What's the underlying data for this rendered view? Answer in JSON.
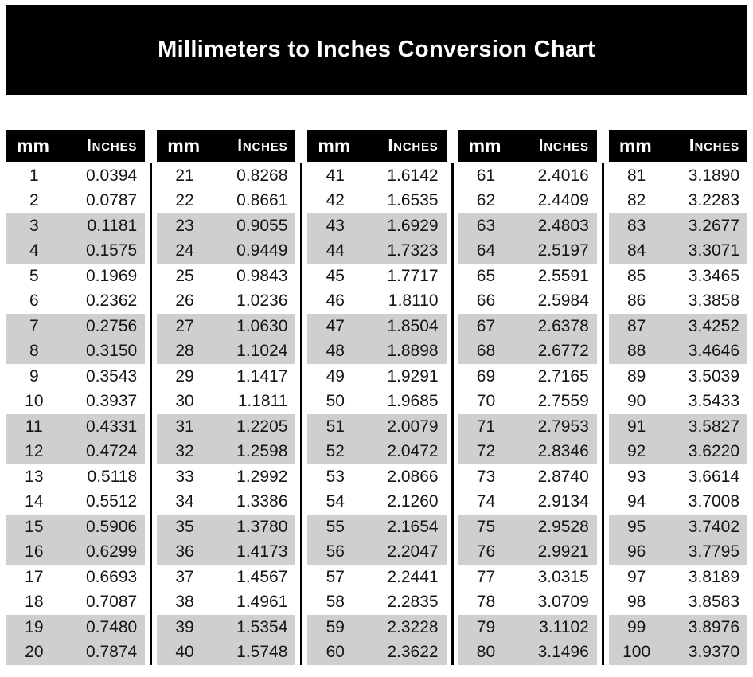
{
  "title": "Millimeters to Inches Conversion Chart",
  "colors": {
    "banner_bg": "#000000",
    "header_bg": "#000000",
    "header_text": "#ffffff",
    "stripe": "#cfcfcf",
    "text": "#151515",
    "divider": "#000000",
    "page_bg": "#ffffff"
  },
  "header": {
    "mm": "mm",
    "inches": "Inches"
  },
  "tables": [
    {
      "rows": [
        [
          "1",
          "0.0394"
        ],
        [
          "2",
          "0.0787"
        ],
        [
          "3",
          "0.1181"
        ],
        [
          "4",
          "0.1575"
        ],
        [
          "5",
          "0.1969"
        ],
        [
          "6",
          "0.2362"
        ],
        [
          "7",
          "0.2756"
        ],
        [
          "8",
          "0.3150"
        ],
        [
          "9",
          "0.3543"
        ],
        [
          "10",
          "0.3937"
        ],
        [
          "11",
          "0.4331"
        ],
        [
          "12",
          "0.4724"
        ],
        [
          "13",
          "0.5118"
        ],
        [
          "14",
          "0.5512"
        ],
        [
          "15",
          "0.5906"
        ],
        [
          "16",
          "0.6299"
        ],
        [
          "17",
          "0.6693"
        ],
        [
          "18",
          "0.7087"
        ],
        [
          "19",
          "0.7480"
        ],
        [
          "20",
          "0.7874"
        ]
      ]
    },
    {
      "rows": [
        [
          "21",
          "0.8268"
        ],
        [
          "22",
          "0.8661"
        ],
        [
          "23",
          "0.9055"
        ],
        [
          "24",
          "0.9449"
        ],
        [
          "25",
          "0.9843"
        ],
        [
          "26",
          "1.0236"
        ],
        [
          "27",
          "1.0630"
        ],
        [
          "28",
          "1.1024"
        ],
        [
          "29",
          "1.1417"
        ],
        [
          "30",
          "1.1811"
        ],
        [
          "31",
          "1.2205"
        ],
        [
          "32",
          "1.2598"
        ],
        [
          "33",
          "1.2992"
        ],
        [
          "34",
          "1.3386"
        ],
        [
          "35",
          "1.3780"
        ],
        [
          "36",
          "1.4173"
        ],
        [
          "37",
          "1.4567"
        ],
        [
          "38",
          "1.4961"
        ],
        [
          "39",
          "1.5354"
        ],
        [
          "40",
          "1.5748"
        ]
      ]
    },
    {
      "rows": [
        [
          "41",
          "1.6142"
        ],
        [
          "42",
          "1.6535"
        ],
        [
          "43",
          "1.6929"
        ],
        [
          "44",
          "1.7323"
        ],
        [
          "45",
          "1.7717"
        ],
        [
          "46",
          "1.8110"
        ],
        [
          "47",
          "1.8504"
        ],
        [
          "48",
          "1.8898"
        ],
        [
          "49",
          "1.9291"
        ],
        [
          "50",
          "1.9685"
        ],
        [
          "51",
          "2.0079"
        ],
        [
          "52",
          "2.0472"
        ],
        [
          "53",
          "2.0866"
        ],
        [
          "54",
          "2.1260"
        ],
        [
          "55",
          "2.1654"
        ],
        [
          "56",
          "2.2047"
        ],
        [
          "57",
          "2.2441"
        ],
        [
          "58",
          "2.2835"
        ],
        [
          "59",
          "2.3228"
        ],
        [
          "60",
          "2.3622"
        ]
      ]
    },
    {
      "rows": [
        [
          "61",
          "2.4016"
        ],
        [
          "62",
          "2.4409"
        ],
        [
          "63",
          "2.4803"
        ],
        [
          "64",
          "2.5197"
        ],
        [
          "65",
          "2.5591"
        ],
        [
          "66",
          "2.5984"
        ],
        [
          "67",
          "2.6378"
        ],
        [
          "68",
          "2.6772"
        ],
        [
          "69",
          "2.7165"
        ],
        [
          "70",
          "2.7559"
        ],
        [
          "71",
          "2.7953"
        ],
        [
          "72",
          "2.8346"
        ],
        [
          "73",
          "2.8740"
        ],
        [
          "74",
          "2.9134"
        ],
        [
          "75",
          "2.9528"
        ],
        [
          "76",
          "2.9921"
        ],
        [
          "77",
          "3.0315"
        ],
        [
          "78",
          "3.0709"
        ],
        [
          "79",
          "3.1102"
        ],
        [
          "80",
          "3.1496"
        ]
      ]
    },
    {
      "rows": [
        [
          "81",
          "3.1890"
        ],
        [
          "82",
          "3.2283"
        ],
        [
          "83",
          "3.2677"
        ],
        [
          "84",
          "3.3071"
        ],
        [
          "85",
          "3.3465"
        ],
        [
          "86",
          "3.3858"
        ],
        [
          "87",
          "3.4252"
        ],
        [
          "88",
          "3.4646"
        ],
        [
          "89",
          "3.5039"
        ],
        [
          "90",
          "3.5433"
        ],
        [
          "91",
          "3.5827"
        ],
        [
          "92",
          "3.6220"
        ],
        [
          "93",
          "3.6614"
        ],
        [
          "94",
          "3.7008"
        ],
        [
          "95",
          "3.7402"
        ],
        [
          "96",
          "3.7795"
        ],
        [
          "97",
          "3.8189"
        ],
        [
          "98",
          "3.8583"
        ],
        [
          "99",
          "3.8976"
        ],
        [
          "100",
          "3.9370"
        ]
      ]
    }
  ]
}
